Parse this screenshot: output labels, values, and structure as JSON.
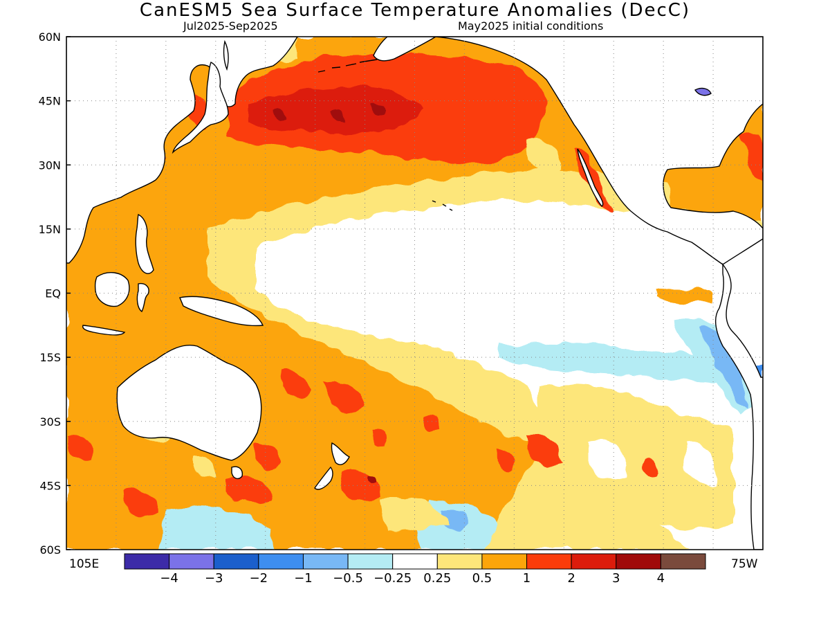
{
  "title": "CanESM5 Sea Surface Temperature Anomalies (DecC)",
  "subtitle_left": "Jul2025-Sep2025",
  "subtitle_right": "May2025 initial conditions",
  "lat_labels": [
    "60N",
    "45N",
    "30N",
    "15N",
    "EQ",
    "15S",
    "30S",
    "45S",
    "60S"
  ],
  "lon_labels": [
    "105E",
    "75W"
  ],
  "colorbar": {
    "colors": [
      "#3c2ba8",
      "#7b72e8",
      "#1b5fcc",
      "#3d8ef0",
      "#78b8f5",
      "#b4ecf4",
      "#ffffff",
      "#fde67a",
      "#fca50a",
      "#fb3c0a",
      "#dc1c0c",
      "#a00a0a",
      "#7a4a3c"
    ],
    "labels": [
      "-4",
      "-3",
      "-2",
      "-1",
      "-0.5",
      "-0.25",
      "0.25",
      "0.5",
      "1",
      "2",
      "3",
      "4"
    ]
  },
  "map_colors": {
    "light_orange": "#fde67a",
    "orange": "#fca50a",
    "red_orange": "#fb3c0a",
    "red": "#dc1c0c",
    "dark_red": "#a00a0a",
    "light_blue": "#b4ecf4",
    "blue": "#78b8f5",
    "mid_blue": "#3d8ef0",
    "purple": "#7b72e8",
    "land": "#ffffff"
  }
}
